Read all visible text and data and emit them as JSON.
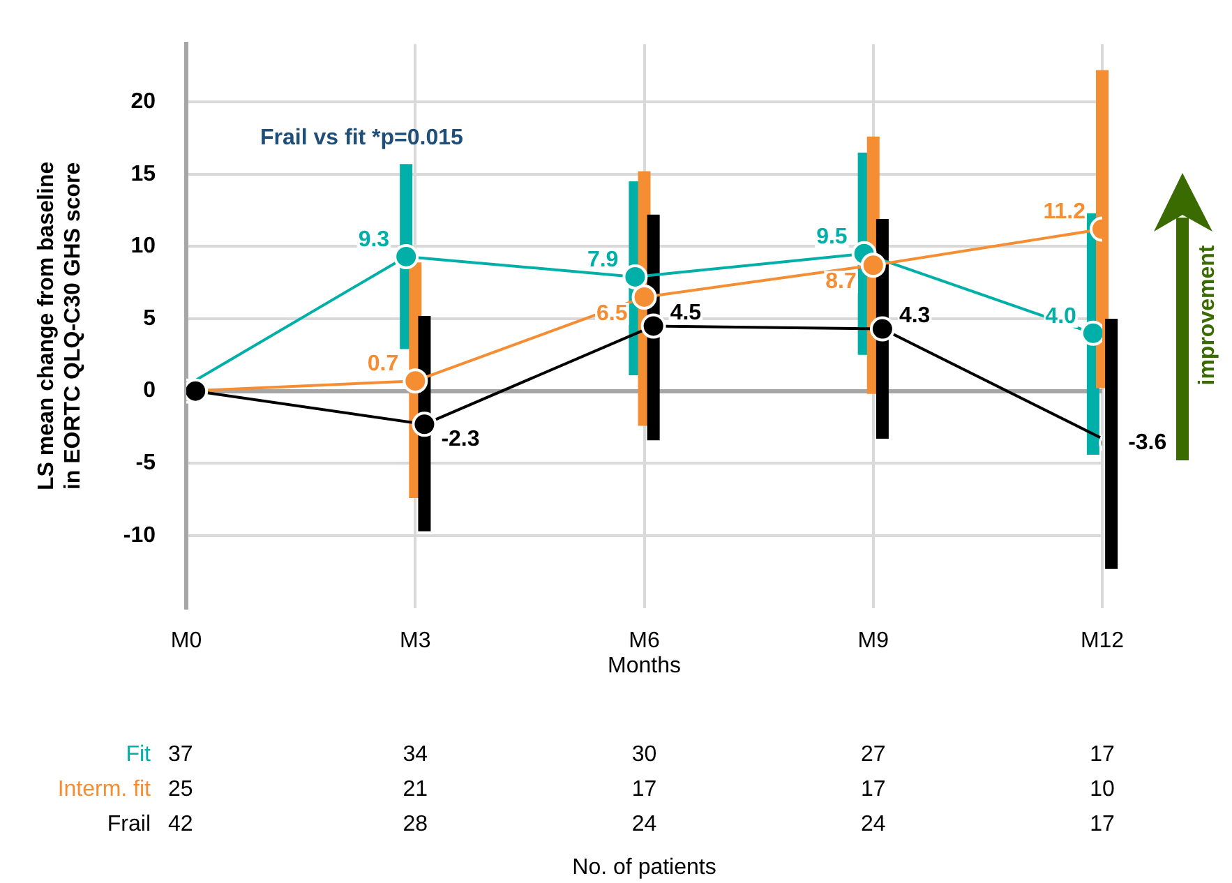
{
  "chart_data": {
    "type": "line",
    "ylabel": "LS mean change from baseline\nin EORTC QLQ-C30 GHS score",
    "xlabel": "Months",
    "categories": [
      "M0",
      "M3",
      "M6",
      "M9",
      "M12"
    ],
    "series": [
      {
        "name": "Fit",
        "color": "#00b0a8",
        "values": [
          0,
          9.3,
          7.9,
          9.5,
          4.0
        ],
        "errors": [
          null,
          [
            2.9,
            15.7
          ],
          [
            1.1,
            14.5
          ],
          [
            2.5,
            16.5
          ],
          [
            -4.4,
            12.3
          ]
        ],
        "value_labels": [
          null,
          "9.3",
          "7.9",
          "9.5",
          "4.0"
        ]
      },
      {
        "name": "Interm. fit",
        "color": "#f58e33",
        "values": [
          0,
          0.7,
          6.5,
          8.7,
          11.2
        ],
        "errors": [
          null,
          [
            -7.4,
            8.9
          ],
          [
            -2.4,
            15.2
          ],
          [
            -0.2,
            17.6
          ],
          [
            0.2,
            22.2
          ]
        ],
        "value_labels": [
          null,
          "0.7",
          "6.5",
          "8.7",
          "11.2"
        ]
      },
      {
        "name": "Frail",
        "color": "#000000",
        "values": [
          0,
          -2.3,
          4.5,
          4.3,
          -3.6
        ],
        "errors": [
          null,
          [
            -9.7,
            5.2
          ],
          [
            -3.4,
            12.2
          ],
          [
            -3.3,
            11.9
          ],
          [
            -12.3,
            5.0
          ]
        ],
        "value_labels": [
          null,
          "-2.3",
          "4.5",
          "4.3",
          "-3.6"
        ]
      }
    ],
    "ylim": [
      -15,
      24
    ],
    "yticks": [
      -10,
      -5,
      0,
      5,
      10,
      15,
      20
    ],
    "grid": true,
    "legend": false,
    "marker": "circle",
    "annotations": [
      "Frail vs fit *p=0.015",
      "improvement",
      "No. of patients",
      "37",
      "34",
      "30",
      "27",
      "17",
      "25",
      "21",
      "17",
      "17",
      "10",
      "42",
      "28",
      "24",
      "24",
      "17"
    ]
  }
}
